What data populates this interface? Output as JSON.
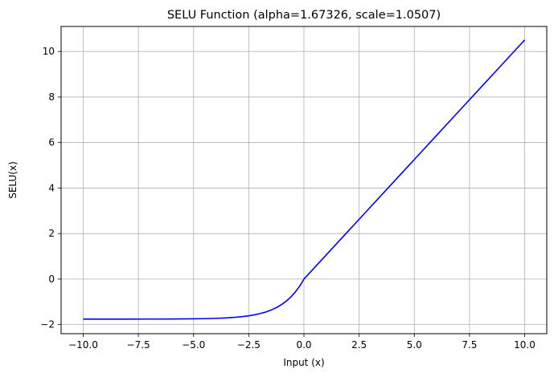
{
  "chart_data": {
    "type": "line",
    "title": "SELU Function (alpha=1.67326, scale=1.0507)",
    "xlabel": "Input (x)",
    "ylabel": "SELU(x)",
    "xlim": [
      -11,
      11
    ],
    "ylim": [
      -2.4,
      11.1
    ],
    "xticks": [
      -10.0,
      -7.5,
      -5.0,
      -2.5,
      0.0,
      2.5,
      5.0,
      7.5,
      10.0
    ],
    "xtick_labels": [
      "−10.0",
      "−7.5",
      "−5.0",
      "−2.5",
      "0.0",
      "2.5",
      "5.0",
      "7.5",
      "10.0"
    ],
    "yticks": [
      -2,
      0,
      2,
      4,
      6,
      8,
      10
    ],
    "ytick_labels": [
      "−2",
      "0",
      "2",
      "4",
      "6",
      "8",
      "10"
    ],
    "grid": true,
    "series": [
      {
        "color": "#0000ff",
        "x": [
          -10,
          -9,
          -8,
          -7,
          -6,
          -5,
          -4.5,
          -4,
          -3.5,
          -3,
          -2.75,
          -2.5,
          -2.25,
          -2,
          -1.75,
          -1.5,
          -1.25,
          -1,
          -0.8,
          -0.6,
          -0.4,
          -0.2,
          -0.1,
          0,
          1,
          2,
          3,
          4,
          5,
          6,
          7,
          8,
          9,
          10
        ],
        "y": [
          -1.758,
          -1.758,
          -1.758,
          -1.757,
          -1.754,
          -1.746,
          -1.739,
          -1.726,
          -1.705,
          -1.67,
          -1.645,
          -1.614,
          -1.575,
          -1.52,
          -1.455,
          -1.366,
          -1.255,
          -1.111,
          -0.968,
          -0.793,
          -0.579,
          -0.319,
          -0.167,
          0,
          1.0507,
          2.1014,
          3.1521,
          4.2028,
          5.2535,
          6.3042,
          7.3549,
          8.4056,
          9.4563,
          10.507
        ]
      }
    ]
  }
}
